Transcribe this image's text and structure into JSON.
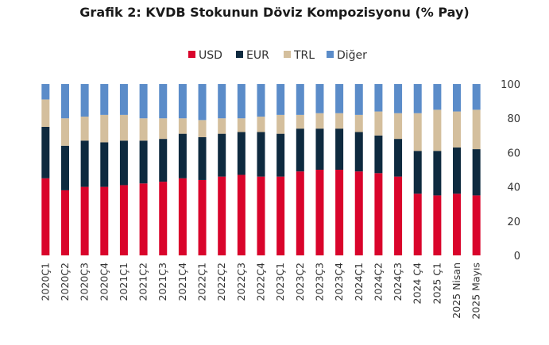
{
  "chart_data": {
    "type": "bar",
    "stacked": true,
    "title": "Grafik 2: KVDB Stokunun Döviz Kompozisyonu (% Pay)",
    "xlabel": "",
    "ylabel": "",
    "ylim": [
      0,
      100
    ],
    "yticks": [
      0,
      20,
      40,
      60,
      80,
      100
    ],
    "y_axis_side": "right",
    "legend_position": "top",
    "grid": false,
    "categories": [
      "2020Ç1",
      "2020Ç2",
      "2020Ç3",
      "2020Ç4",
      "2021Ç1",
      "2021Ç2",
      "2021Ç3",
      "2021Ç4",
      "2022Ç1",
      "2022Ç2",
      "2022Ç3",
      "2022Ç4",
      "2023Ç1",
      "2023Ç2",
      "2023Ç3",
      "2023Ç4",
      "2024Ç1",
      "2024Ç2",
      "2024Ç3",
      "2024 Ç4",
      "2025 Ç1",
      "2025 Nisan",
      "2025 Mayıs"
    ],
    "series": [
      {
        "name": "USD",
        "color": "#d9042b",
        "values": [
          45,
          38,
          40,
          40,
          41,
          42,
          43,
          45,
          44,
          46,
          47,
          46,
          46,
          49,
          50,
          50,
          49,
          48,
          46,
          36,
          35,
          36,
          35
        ]
      },
      {
        "name": "EUR",
        "color": "#0e2a3f",
        "values": [
          30,
          26,
          27,
          26,
          26,
          25,
          25,
          26,
          25,
          25,
          25,
          26,
          25,
          25,
          24,
          24,
          23,
          22,
          22,
          25,
          26,
          27,
          27
        ]
      },
      {
        "name": "TRL",
        "color": "#d4bf9d",
        "values": [
          16,
          16,
          14,
          16,
          15,
          13,
          12,
          9,
          10,
          9,
          8,
          9,
          11,
          8,
          9,
          9,
          10,
          14,
          15,
          22,
          24,
          21,
          23
        ]
      },
      {
        "name": "Diğer",
        "color": "#5b8cc9",
        "values": [
          9,
          20,
          19,
          18,
          18,
          20,
          20,
          20,
          21,
          20,
          20,
          19,
          18,
          18,
          17,
          17,
          18,
          16,
          17,
          17,
          15,
          16,
          15
        ]
      }
    ]
  }
}
